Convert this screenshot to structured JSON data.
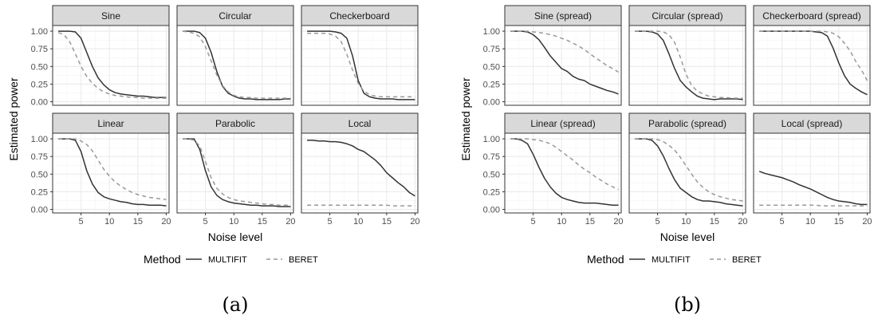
{
  "colors": {
    "multifit": "#333333",
    "beret": "#999999",
    "strip_bg": "#d9d9d9",
    "grid_major": "#ebebeb",
    "grid_minor": "#f4f4f4",
    "panel_border": "#333333"
  },
  "legend": {
    "title": "Method",
    "entries": [
      {
        "label": "MULTIFIT",
        "linetype": "solid"
      },
      {
        "label": "BERET",
        "linetype": "dashed"
      }
    ]
  },
  "figures": [
    {
      "caption": "(a)",
      "ylabel": "Estimated power",
      "xlabel": "Noise level",
      "xticks": [
        5,
        10,
        15,
        20
      ],
      "yticks": [
        "0.00",
        "0.25",
        "0.50",
        "0.75",
        "1.00"
      ]
    },
    {
      "caption": "(b)",
      "ylabel": "Estimated power",
      "xlabel": "Noise level",
      "xticks": [
        5,
        10,
        15,
        20
      ],
      "yticks": [
        "0.00",
        "0.25",
        "0.50",
        "0.75",
        "1.00"
      ]
    }
  ],
  "chart_data": [
    {
      "type": "line",
      "title": "(a)",
      "xlabel": "Noise level",
      "ylabel": "Estimated power",
      "xlim": [
        0,
        20.5
      ],
      "ylim": [
        -0.05,
        1.08
      ],
      "grid": true,
      "legend_position": "bottom",
      "x": [
        1,
        2,
        3,
        4,
        5,
        6,
        7,
        8,
        9,
        10,
        11,
        12,
        13,
        14,
        15,
        16,
        17,
        18,
        19,
        20
      ],
      "facets": [
        {
          "name": "Sine",
          "series": [
            {
              "name": "MULTIFIT",
              "values": [
                1.0,
                1.0,
                1.0,
                0.99,
                0.9,
                0.7,
                0.5,
                0.34,
                0.24,
                0.17,
                0.13,
                0.11,
                0.1,
                0.09,
                0.08,
                0.08,
                0.07,
                0.06,
                0.06,
                0.06
              ]
            },
            {
              "name": "BERET",
              "values": [
                0.98,
                0.95,
                0.85,
                0.68,
                0.5,
                0.36,
                0.26,
                0.19,
                0.14,
                0.11,
                0.09,
                0.08,
                0.07,
                0.06,
                0.06,
                0.05,
                0.05,
                0.05,
                0.05,
                0.05
              ]
            }
          ]
        },
        {
          "name": "Circular",
          "series": [
            {
              "name": "MULTIFIT",
              "values": [
                1.0,
                1.0,
                1.0,
                0.98,
                0.9,
                0.7,
                0.43,
                0.22,
                0.12,
                0.08,
                0.05,
                0.04,
                0.04,
                0.03,
                0.03,
                0.03,
                0.03,
                0.03,
                0.04,
                0.04
              ]
            },
            {
              "name": "BERET",
              "values": [
                1.0,
                0.99,
                0.97,
                0.92,
                0.78,
                0.58,
                0.38,
                0.23,
                0.14,
                0.09,
                0.07,
                0.06,
                0.06,
                0.05,
                0.05,
                0.05,
                0.05,
                0.05,
                0.05,
                0.05
              ]
            }
          ]
        },
        {
          "name": "Checkerboard",
          "series": [
            {
              "name": "MULTIFIT",
              "values": [
                1.0,
                1.0,
                1.0,
                1.0,
                1.0,
                0.99,
                0.97,
                0.9,
                0.65,
                0.3,
                0.12,
                0.07,
                0.05,
                0.04,
                0.04,
                0.04,
                0.03,
                0.03,
                0.03,
                0.03
              ]
            },
            {
              "name": "BERET",
              "values": [
                0.97,
                0.97,
                0.97,
                0.97,
                0.96,
                0.93,
                0.85,
                0.67,
                0.45,
                0.26,
                0.15,
                0.1,
                0.08,
                0.07,
                0.07,
                0.07,
                0.07,
                0.07,
                0.07,
                0.07
              ]
            }
          ]
        },
        {
          "name": "Linear",
          "series": [
            {
              "name": "MULTIFIT",
              "values": [
                1.0,
                1.0,
                1.0,
                0.98,
                0.82,
                0.55,
                0.36,
                0.24,
                0.18,
                0.15,
                0.13,
                0.11,
                0.1,
                0.08,
                0.07,
                0.07,
                0.06,
                0.06,
                0.06,
                0.05
              ]
            },
            {
              "name": "BERET",
              "values": [
                1.0,
                1.0,
                1.0,
                1.0,
                0.97,
                0.92,
                0.83,
                0.7,
                0.57,
                0.47,
                0.39,
                0.33,
                0.28,
                0.24,
                0.21,
                0.19,
                0.17,
                0.16,
                0.15,
                0.14
              ]
            }
          ]
        },
        {
          "name": "Parabolic",
          "series": [
            {
              "name": "MULTIFIT",
              "values": [
                1.0,
                1.0,
                1.0,
                0.85,
                0.55,
                0.32,
                0.2,
                0.14,
                0.11,
                0.09,
                0.08,
                0.07,
                0.06,
                0.06,
                0.05,
                0.05,
                0.05,
                0.04,
                0.04,
                0.04
              ]
            },
            {
              "name": "BERET",
              "values": [
                1.0,
                1.0,
                0.98,
                0.9,
                0.68,
                0.45,
                0.3,
                0.22,
                0.17,
                0.14,
                0.12,
                0.11,
                0.1,
                0.09,
                0.08,
                0.07,
                0.07,
                0.06,
                0.06,
                0.06
              ]
            }
          ]
        },
        {
          "name": "Local",
          "series": [
            {
              "name": "MULTIFIT",
              "values": [
                0.98,
                0.98,
                0.97,
                0.97,
                0.96,
                0.96,
                0.95,
                0.93,
                0.9,
                0.85,
                0.82,
                0.76,
                0.7,
                0.62,
                0.52,
                0.45,
                0.38,
                0.32,
                0.24,
                0.19
              ]
            },
            {
              "name": "BERET",
              "values": [
                0.06,
                0.06,
                0.06,
                0.06,
                0.06,
                0.06,
                0.06,
                0.06,
                0.06,
                0.06,
                0.06,
                0.06,
                0.06,
                0.06,
                0.06,
                0.05,
                0.05,
                0.05,
                0.05,
                0.05
              ]
            }
          ]
        }
      ]
    },
    {
      "type": "line",
      "title": "(b)",
      "xlabel": "Noise level",
      "ylabel": "Estimated power",
      "xlim": [
        0,
        20.5
      ],
      "ylim": [
        -0.05,
        1.08
      ],
      "grid": true,
      "legend_position": "bottom",
      "x": [
        1,
        2,
        3,
        4,
        5,
        6,
        7,
        8,
        9,
        10,
        11,
        12,
        13,
        14,
        15,
        16,
        17,
        18,
        19,
        20
      ],
      "facets": [
        {
          "name": "Sine (spread)",
          "series": [
            {
              "name": "MULTIFIT",
              "values": [
                1.0,
                1.0,
                1.0,
                0.99,
                0.95,
                0.88,
                0.77,
                0.65,
                0.56,
                0.47,
                0.43,
                0.36,
                0.32,
                0.3,
                0.25,
                0.22,
                0.19,
                0.16,
                0.14,
                0.11
              ]
            },
            {
              "name": "BERET",
              "values": [
                1.0,
                1.0,
                1.0,
                1.0,
                0.99,
                0.98,
                0.97,
                0.95,
                0.93,
                0.9,
                0.87,
                0.83,
                0.79,
                0.74,
                0.68,
                0.62,
                0.57,
                0.51,
                0.47,
                0.42
              ]
            }
          ]
        },
        {
          "name": "Circular (spread)",
          "series": [
            {
              "name": "MULTIFIT",
              "values": [
                1.0,
                1.0,
                1.0,
                0.99,
                0.96,
                0.87,
                0.68,
                0.47,
                0.3,
                0.21,
                0.14,
                0.08,
                0.05,
                0.04,
                0.03,
                0.04,
                0.04,
                0.04,
                0.04,
                0.03
              ]
            },
            {
              "name": "BERET",
              "values": [
                1.0,
                1.0,
                1.0,
                1.0,
                1.0,
                0.99,
                0.95,
                0.84,
                0.63,
                0.39,
                0.23,
                0.15,
                0.11,
                0.08,
                0.07,
                0.06,
                0.06,
                0.05,
                0.05,
                0.05
              ]
            }
          ]
        },
        {
          "name": "Checkerboard (spread)",
          "series": [
            {
              "name": "MULTIFIT",
              "values": [
                1.0,
                1.0,
                1.0,
                1.0,
                1.0,
                1.0,
                1.0,
                1.0,
                1.0,
                1.0,
                0.99,
                0.98,
                0.93,
                0.76,
                0.55,
                0.37,
                0.25,
                0.19,
                0.14,
                0.1
              ]
            },
            {
              "name": "BERET",
              "values": [
                1.0,
                1.0,
                1.0,
                1.0,
                1.0,
                1.0,
                1.0,
                1.0,
                1.0,
                1.0,
                1.0,
                1.0,
                0.99,
                0.97,
                0.92,
                0.83,
                0.72,
                0.57,
                0.45,
                0.3
              ]
            }
          ]
        },
        {
          "name": "Linear (spread)",
          "series": [
            {
              "name": "MULTIFIT",
              "values": [
                1.0,
                1.0,
                0.98,
                0.93,
                0.78,
                0.6,
                0.44,
                0.32,
                0.23,
                0.17,
                0.14,
                0.12,
                0.1,
                0.09,
                0.09,
                0.09,
                0.08,
                0.07,
                0.06,
                0.06
              ]
            },
            {
              "name": "BERET",
              "values": [
                1.0,
                1.0,
                1.0,
                1.0,
                0.99,
                0.98,
                0.96,
                0.93,
                0.88,
                0.82,
                0.76,
                0.7,
                0.63,
                0.57,
                0.52,
                0.46,
                0.41,
                0.36,
                0.32,
                0.28
              ]
            }
          ]
        },
        {
          "name": "Parabolic (spread)",
          "series": [
            {
              "name": "MULTIFIT",
              "values": [
                1.0,
                1.0,
                1.0,
                0.98,
                0.9,
                0.76,
                0.58,
                0.42,
                0.3,
                0.24,
                0.18,
                0.14,
                0.12,
                0.12,
                0.11,
                0.1,
                0.08,
                0.07,
                0.06,
                0.05
              ]
            },
            {
              "name": "BERET",
              "values": [
                1.0,
                1.0,
                1.0,
                1.0,
                0.99,
                0.96,
                0.91,
                0.84,
                0.74,
                0.62,
                0.5,
                0.39,
                0.31,
                0.25,
                0.21,
                0.18,
                0.16,
                0.14,
                0.13,
                0.12
              ]
            }
          ]
        },
        {
          "name": "Local (spread)",
          "series": [
            {
              "name": "MULTIFIT",
              "values": [
                0.54,
                0.51,
                0.49,
                0.47,
                0.45,
                0.42,
                0.39,
                0.35,
                0.32,
                0.29,
                0.25,
                0.21,
                0.17,
                0.14,
                0.12,
                0.11,
                0.1,
                0.08,
                0.07,
                0.07
              ]
            },
            {
              "name": "BERET",
              "values": [
                0.06,
                0.06,
                0.06,
                0.06,
                0.06,
                0.06,
                0.06,
                0.06,
                0.06,
                0.06,
                0.06,
                0.05,
                0.05,
                0.05,
                0.05,
                0.05,
                0.05,
                0.05,
                0.05,
                0.05
              ]
            }
          ]
        }
      ]
    }
  ]
}
